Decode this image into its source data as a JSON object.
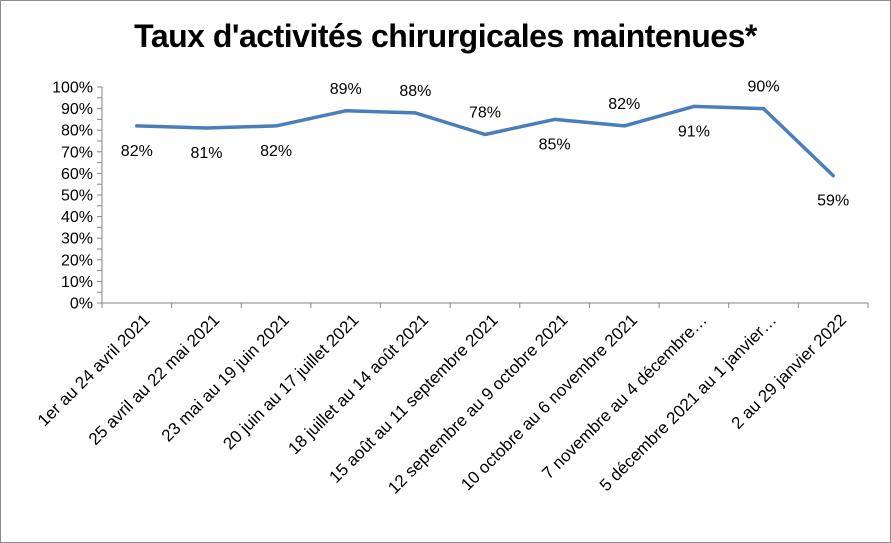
{
  "chart_data": {
    "type": "line",
    "title": "Taux d'activités chirurgicales maintenues*",
    "xlabel": "",
    "ylabel": "",
    "ylim": [
      0,
      100
    ],
    "ytick_step": 5,
    "ytick_suffix": "%",
    "grid": false,
    "legend": "none",
    "categories": [
      "1er au 24 avril 2021",
      "25 avril au 22 mai 2021",
      "23 mai au 19 juin 2021",
      "20 juin au 17 juillet 2021",
      "18 juillet au 14 août 2021",
      "15 août au 11 septembre 2021",
      "12 septembre au 9 octobre 2021",
      "10 octobre au 6 novembre 2021",
      "7 novembre au 4 décembre…",
      "5 décembre 2021 au 1 janvier…",
      "2 au 29 janvier 2022"
    ],
    "series": [
      {
        "name": "",
        "color": "#4a7ebb",
        "values": [
          82,
          81,
          82,
          89,
          88,
          78,
          85,
          82,
          91,
          90,
          59
        ],
        "labels": [
          "82%",
          "81%",
          "82%",
          "89%",
          "88%",
          "78%",
          "85%",
          "82%",
          "91%",
          "90%",
          "59%"
        ],
        "label_pos": [
          "below",
          "below",
          "below",
          "above",
          "above",
          "above",
          "below",
          "above",
          "below",
          "above",
          "below"
        ]
      }
    ]
  }
}
